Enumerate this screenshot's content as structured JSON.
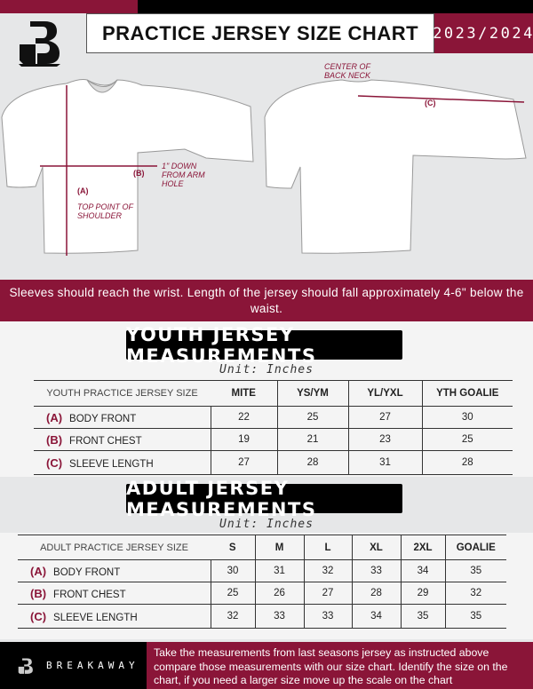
{
  "header": {
    "title": "PRACTICE JERSEY SIZE CHART",
    "season": "2023/2024",
    "logo_text": "B"
  },
  "diagram": {
    "front": {
      "label_b": "(B)",
      "note_b": "1\" DOWN FROM ARM HOLE",
      "label_a": "(A)",
      "note_a": "TOP POINT OF SHOULDER"
    },
    "back": {
      "note_c": "CENTER OF BACK NECK",
      "label_c": "(C)"
    }
  },
  "instructions": "Sleeves should reach the wrist. Length of the jersey should fall approximately 4-6\" below the waist.",
  "youth": {
    "title": "YOUTH JERSEY MEASUREMENTS",
    "unit": "Unit: Inches",
    "columns": [
      "YOUTH PRACTICE JERSEY SIZE",
      "MITE",
      "YS/YM",
      "YL/YXL",
      "YTH GOALIE"
    ],
    "rows": [
      {
        "letter": "(A)",
        "name": "BODY FRONT",
        "values": [
          "22",
          "25",
          "27",
          "30"
        ]
      },
      {
        "letter": "(B)",
        "name": "FRONT CHEST",
        "values": [
          "19",
          "21",
          "23",
          "25"
        ]
      },
      {
        "letter": "(C)",
        "name": "SLEEVE LENGTH",
        "values": [
          "27",
          "28",
          "31",
          "28"
        ]
      }
    ]
  },
  "adult": {
    "title": "ADULT JERSEY MEASUREMENTS",
    "unit": "Unit: Inches",
    "columns": [
      "ADULT PRACTICE JERSEY SIZE",
      "S",
      "M",
      "L",
      "XL",
      "2XL",
      "GOALIE"
    ],
    "rows": [
      {
        "letter": "(A)",
        "name": "BODY FRONT",
        "values": [
          "30",
          "31",
          "32",
          "33",
          "34",
          "35"
        ]
      },
      {
        "letter": "(B)",
        "name": "FRONT CHEST",
        "values": [
          "25",
          "26",
          "27",
          "28",
          "29",
          "32"
        ]
      },
      {
        "letter": "(C)",
        "name": "SLEEVE LENGTH",
        "values": [
          "32",
          "33",
          "33",
          "34",
          "35",
          "35"
        ]
      }
    ]
  },
  "footer": {
    "brand": "BREAKAWAY",
    "text": "Take the measurements from last seasons jersey as instructed above compare those measurements  with our size chart. Identify the size on the chart, if you need a larger size move up the scale on the chart"
  },
  "colors": {
    "accent": "#8a1538",
    "dark": "#000000",
    "background": "#e6e7e8"
  }
}
